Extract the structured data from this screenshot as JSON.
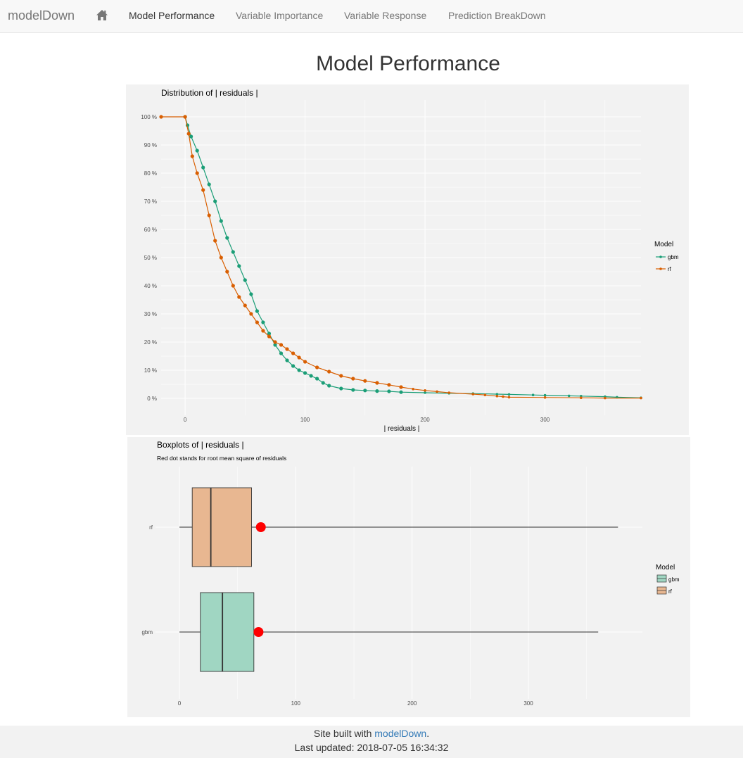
{
  "nav": {
    "brand": "modelDown",
    "home_icon": "home-icon",
    "items": [
      "Model Performance",
      "Variable Importance",
      "Variable Response",
      "Prediction BreakDown"
    ],
    "active": "Model Performance"
  },
  "page": {
    "title": "Model Performance"
  },
  "colors": {
    "gbm": "#1b9e77",
    "rf": "#d95f02",
    "gbm_fill": "#a0d6c2",
    "rf_fill": "#e8b791",
    "rmse_dot": "#ff0000"
  },
  "chart_data": [
    {
      "type": "line",
      "title": "Distribution of | residuals |",
      "xlabel": "| residuals |",
      "ylabel": "",
      "xlim": [
        -20,
        380
      ],
      "ylim": [
        0,
        1
      ],
      "x_ticks": [
        "0",
        "100",
        "200",
        "300"
      ],
      "y_ticks": [
        "0 %",
        "10 %",
        "20 %",
        "30 %",
        "40 %",
        "50 %",
        "60 %",
        "70 %",
        "80 %",
        "90 %",
        "100 %"
      ],
      "grid": true,
      "legend": {
        "title": "Model",
        "position": "right",
        "entries": [
          "gbm",
          "rf"
        ]
      },
      "series": [
        {
          "name": "gbm",
          "points": [
            [
              0,
              1.0
            ],
            [
              2,
              0.97
            ],
            [
              5,
              0.93
            ],
            [
              10,
              0.88
            ],
            [
              15,
              0.82
            ],
            [
              20,
              0.76
            ],
            [
              25,
              0.7
            ],
            [
              30,
              0.63
            ],
            [
              35,
              0.57
            ],
            [
              40,
              0.52
            ],
            [
              45,
              0.47
            ],
            [
              50,
              0.42
            ],
            [
              55,
              0.37
            ],
            [
              60,
              0.31
            ],
            [
              65,
              0.27
            ],
            [
              70,
              0.23
            ],
            [
              75,
              0.19
            ],
            [
              80,
              0.16
            ],
            [
              85,
              0.135
            ],
            [
              90,
              0.115
            ],
            [
              95,
              0.1
            ],
            [
              100,
              0.09
            ],
            [
              105,
              0.08
            ],
            [
              110,
              0.07
            ],
            [
              115,
              0.055
            ],
            [
              120,
              0.045
            ],
            [
              130,
              0.035
            ],
            [
              140,
              0.03
            ],
            [
              150,
              0.028
            ],
            [
              160,
              0.026
            ],
            [
              170,
              0.025
            ],
            [
              180,
              0.022
            ],
            [
              200,
              0.02
            ],
            [
              220,
              0.018
            ],
            [
              240,
              0.017
            ],
            [
              260,
              0.015
            ],
            [
              270,
              0.014
            ],
            [
              290,
              0.012
            ],
            [
              300,
              0.011
            ],
            [
              320,
              0.009
            ],
            [
              330,
              0.008
            ],
            [
              350,
              0.006
            ],
            [
              360,
              0.004
            ],
            [
              380,
              0.002
            ]
          ]
        },
        {
          "name": "rf",
          "points": [
            [
              -20,
              1.0
            ],
            [
              0,
              1.0
            ],
            [
              3,
              0.94
            ],
            [
              6,
              0.86
            ],
            [
              10,
              0.8
            ],
            [
              15,
              0.74
            ],
            [
              20,
              0.65
            ],
            [
              25,
              0.56
            ],
            [
              30,
              0.5
            ],
            [
              35,
              0.45
            ],
            [
              40,
              0.4
            ],
            [
              45,
              0.36
            ],
            [
              50,
              0.33
            ],
            [
              55,
              0.3
            ],
            [
              60,
              0.27
            ],
            [
              65,
              0.24
            ],
            [
              70,
              0.22
            ],
            [
              75,
              0.2
            ],
            [
              80,
              0.19
            ],
            [
              85,
              0.175
            ],
            [
              90,
              0.16
            ],
            [
              95,
              0.145
            ],
            [
              100,
              0.13
            ],
            [
              110,
              0.11
            ],
            [
              120,
              0.095
            ],
            [
              130,
              0.08
            ],
            [
              140,
              0.07
            ],
            [
              150,
              0.062
            ],
            [
              160,
              0.055
            ],
            [
              170,
              0.048
            ],
            [
              180,
              0.04
            ],
            [
              190,
              0.033
            ],
            [
              200,
              0.028
            ],
            [
              210,
              0.024
            ],
            [
              220,
              0.02
            ],
            [
              240,
              0.015
            ],
            [
              250,
              0.012
            ],
            [
              260,
              0.008
            ],
            [
              265,
              0.006
            ],
            [
              270,
              0.004
            ],
            [
              300,
              0.003
            ],
            [
              330,
              0.002
            ],
            [
              350,
              0.001
            ],
            [
              380,
              0.001
            ]
          ]
        }
      ]
    },
    {
      "type": "boxplot",
      "title": "Boxplots of | residuals |",
      "subtitle": "Red dot stands for root mean square of residuals",
      "xlim": [
        -10,
        400
      ],
      "x_ticks": [
        "0",
        "100",
        "200",
        "300"
      ],
      "grid": true,
      "legend": {
        "title": "Model",
        "position": "right",
        "entries": [
          "gbm",
          "rf"
        ]
      },
      "boxes": [
        {
          "name": "rf",
          "min": 0,
          "q1": 11,
          "median": 27,
          "q3": 62,
          "max": 377,
          "rmse": 70
        },
        {
          "name": "gbm",
          "min": 0,
          "q1": 18,
          "median": 37,
          "q3": 64,
          "max": 360,
          "rmse": 68
        }
      ]
    }
  ],
  "footer": {
    "built_prefix": "Site built with ",
    "built_link": "modelDown",
    "built_suffix": ".",
    "updated": "Last updated: 2018-07-05 16:34:32"
  }
}
